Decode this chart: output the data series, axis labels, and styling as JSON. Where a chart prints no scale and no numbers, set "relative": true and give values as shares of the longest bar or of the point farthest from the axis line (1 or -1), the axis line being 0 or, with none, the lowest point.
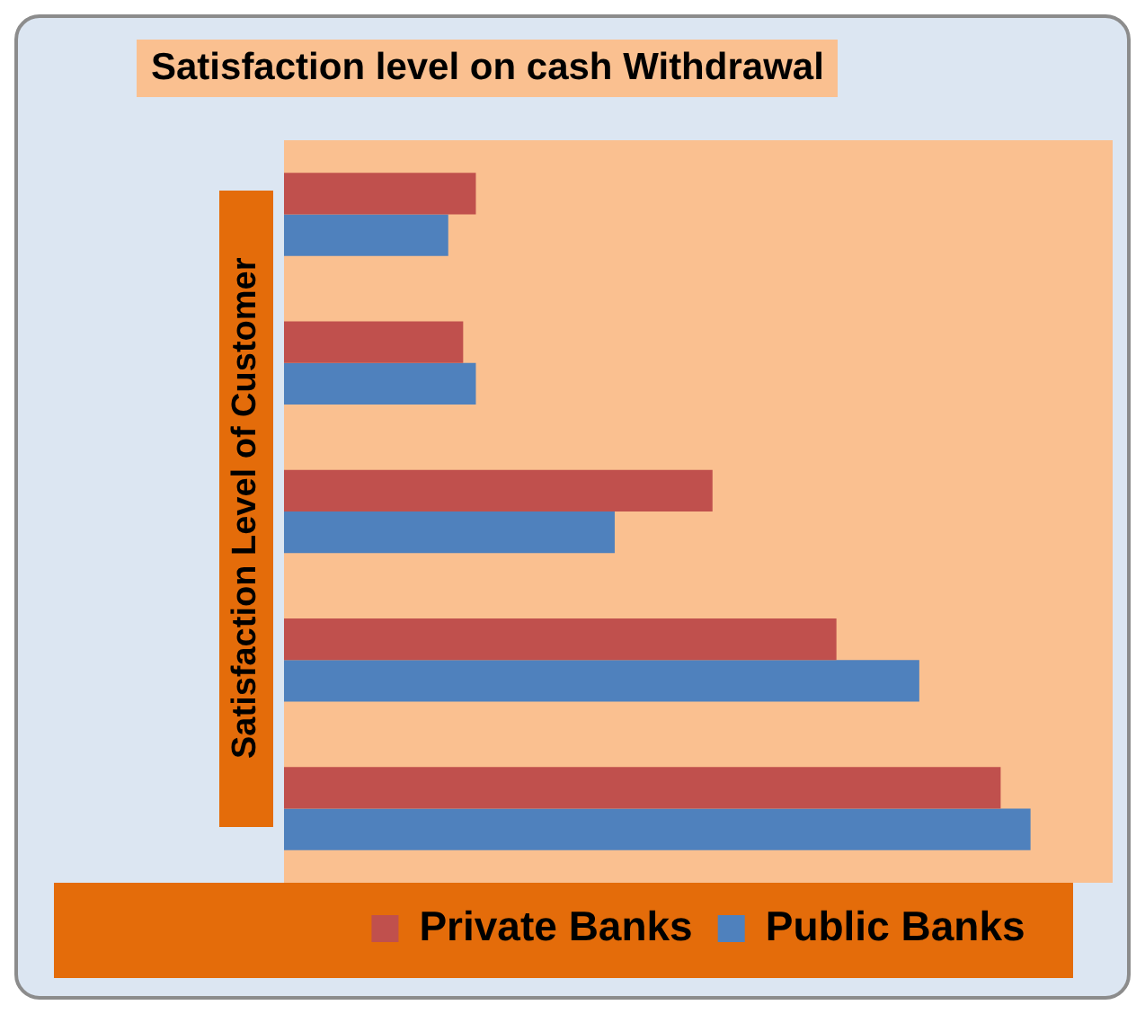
{
  "chart_data": {
    "type": "bar",
    "orientation": "horizontal",
    "relative": true,
    "title": "Satisfaction level on cash Withdrawal",
    "ylabel": "Satisfaction Level of Customer",
    "categories": [
      null,
      null,
      null,
      null,
      null
    ],
    "series": [
      {
        "name": "Private Banks",
        "color": "#c0504d",
        "values": [
          0.257,
          0.24,
          0.574,
          0.74,
          0.96
        ]
      },
      {
        "name": "Public Banks",
        "color": "#4f81bd",
        "values": [
          0.22,
          0.257,
          0.443,
          0.851,
          1
        ]
      }
    ],
    "legend": "bottom"
  }
}
